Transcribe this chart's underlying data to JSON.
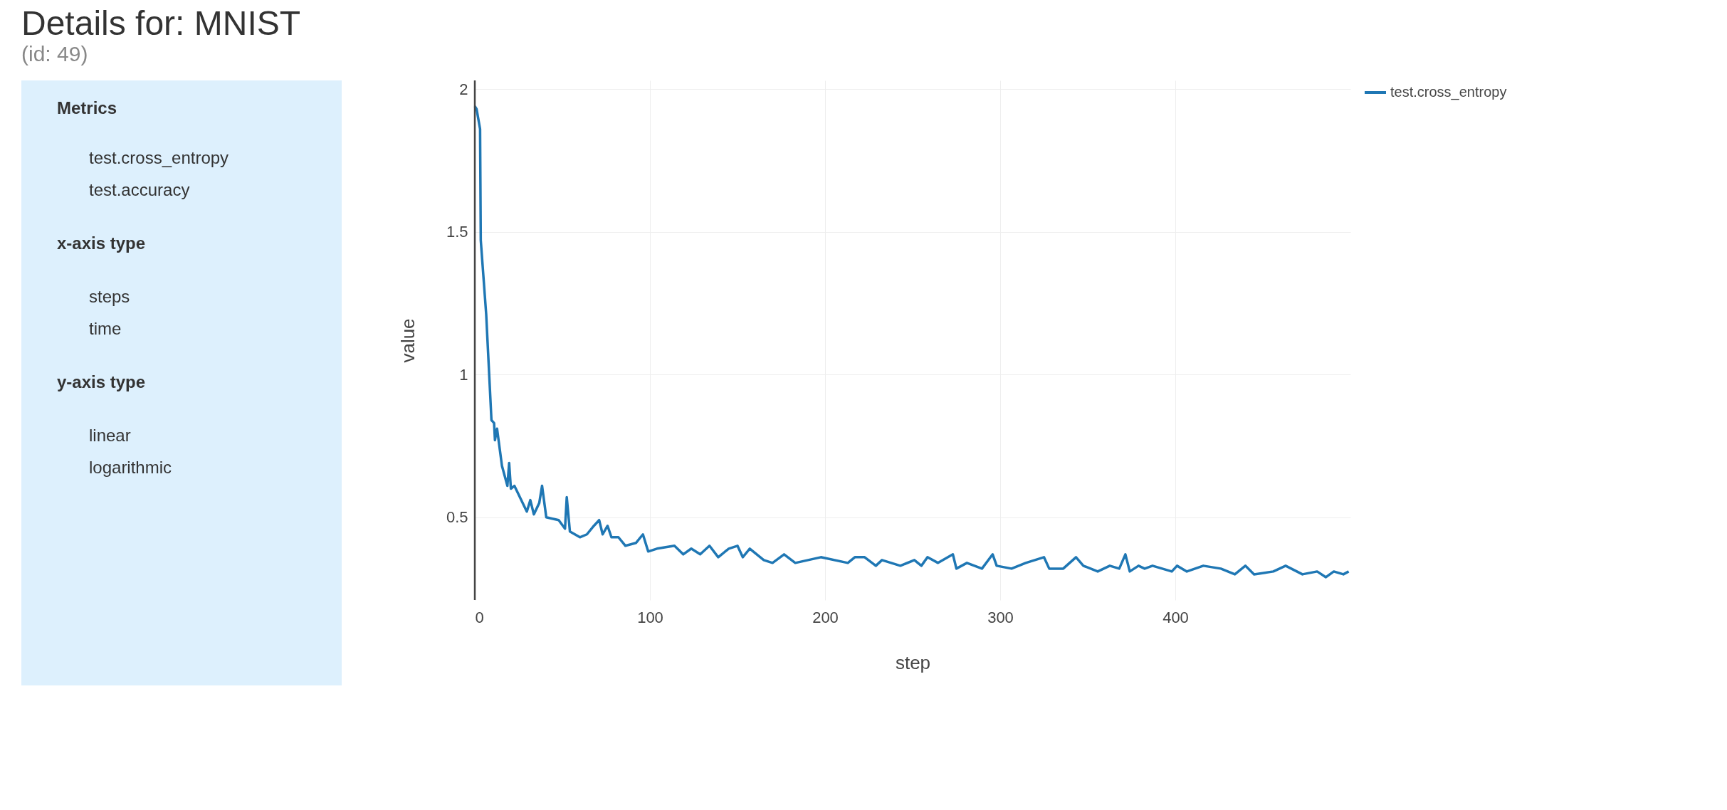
{
  "chart_data": {
    "type": "line",
    "title": "Details for: MNIST",
    "subtitle": "(id: 49)",
    "xlabel": "step",
    "ylabel": "value",
    "xlim": [
      0,
      500
    ],
    "xticks": [
      0,
      100,
      200,
      300,
      400
    ],
    "ylim": [
      0.21,
      2.03
    ],
    "yticks": [
      0.5,
      1,
      1.5,
      2
    ],
    "grid": true,
    "legend": "top right",
    "marker": "none",
    "line_style": "solid",
    "annotations": [
      "Metrics",
      "test.cross_entropy",
      "test.accuracy",
      "x-axis type",
      "steps",
      "time",
      "y-axis type",
      "linear",
      "logarithmic"
    ],
    "series": [
      {
        "name": "test.cross_entropy",
        "color": "#1f77b4",
        "x": [
          0,
          1,
          3,
          3.4,
          6.5,
          9.5,
          11,
          11.5,
          12.7,
          15.5,
          18.6,
          19.6,
          20.6,
          22.6,
          29.7,
          31.7,
          33.7,
          36.8,
          38.4,
          40.8,
          47.9,
          51.5,
          52.5,
          54.3,
          60,
          64,
          68,
          71,
          73,
          75.8,
          78,
          82,
          86,
          92,
          96,
          99,
          104,
          114,
          119,
          123.6,
          128.7,
          134,
          139,
          145,
          150,
          153,
          157,
          165,
          170,
          176.6,
          183,
          197.6,
          213,
          217,
          222.6,
          229,
          232.5,
          243,
          251,
          255,
          258.5,
          264.5,
          273,
          275,
          281,
          289.6,
          295.7,
          298,
          306.5,
          314.6,
          325,
          328,
          336,
          343.3,
          347.5,
          355.7,
          362.6,
          368,
          371.5,
          374,
          379,
          382.5,
          387,
          398,
          401,
          406.6,
          416,
          426,
          434,
          440,
          445,
          456,
          463,
          472.6,
          481,
          486,
          490.5,
          496,
          499
        ],
        "values": [
          1.94,
          1.93,
          1.86,
          1.47,
          1.21,
          0.84,
          0.83,
          0.77,
          0.81,
          0.68,
          0.61,
          0.69,
          0.6,
          0.61,
          0.52,
          0.56,
          0.51,
          0.55,
          0.61,
          0.5,
          0.49,
          0.46,
          0.57,
          0.45,
          0.43,
          0.44,
          0.47,
          0.49,
          0.44,
          0.47,
          0.43,
          0.43,
          0.4,
          0.41,
          0.44,
          0.38,
          0.39,
          0.4,
          0.37,
          0.39,
          0.37,
          0.4,
          0.36,
          0.39,
          0.4,
          0.36,
          0.39,
          0.35,
          0.34,
          0.37,
          0.34,
          0.36,
          0.34,
          0.36,
          0.36,
          0.33,
          0.35,
          0.33,
          0.35,
          0.33,
          0.36,
          0.34,
          0.37,
          0.32,
          0.34,
          0.32,
          0.37,
          0.33,
          0.32,
          0.34,
          0.36,
          0.32,
          0.32,
          0.36,
          0.33,
          0.31,
          0.33,
          0.32,
          0.37,
          0.31,
          0.33,
          0.32,
          0.33,
          0.31,
          0.33,
          0.31,
          0.33,
          0.32,
          0.3,
          0.33,
          0.3,
          0.31,
          0.33,
          0.3,
          0.31,
          0.29,
          0.31,
          0.3,
          0.31
        ]
      }
    ]
  }
}
